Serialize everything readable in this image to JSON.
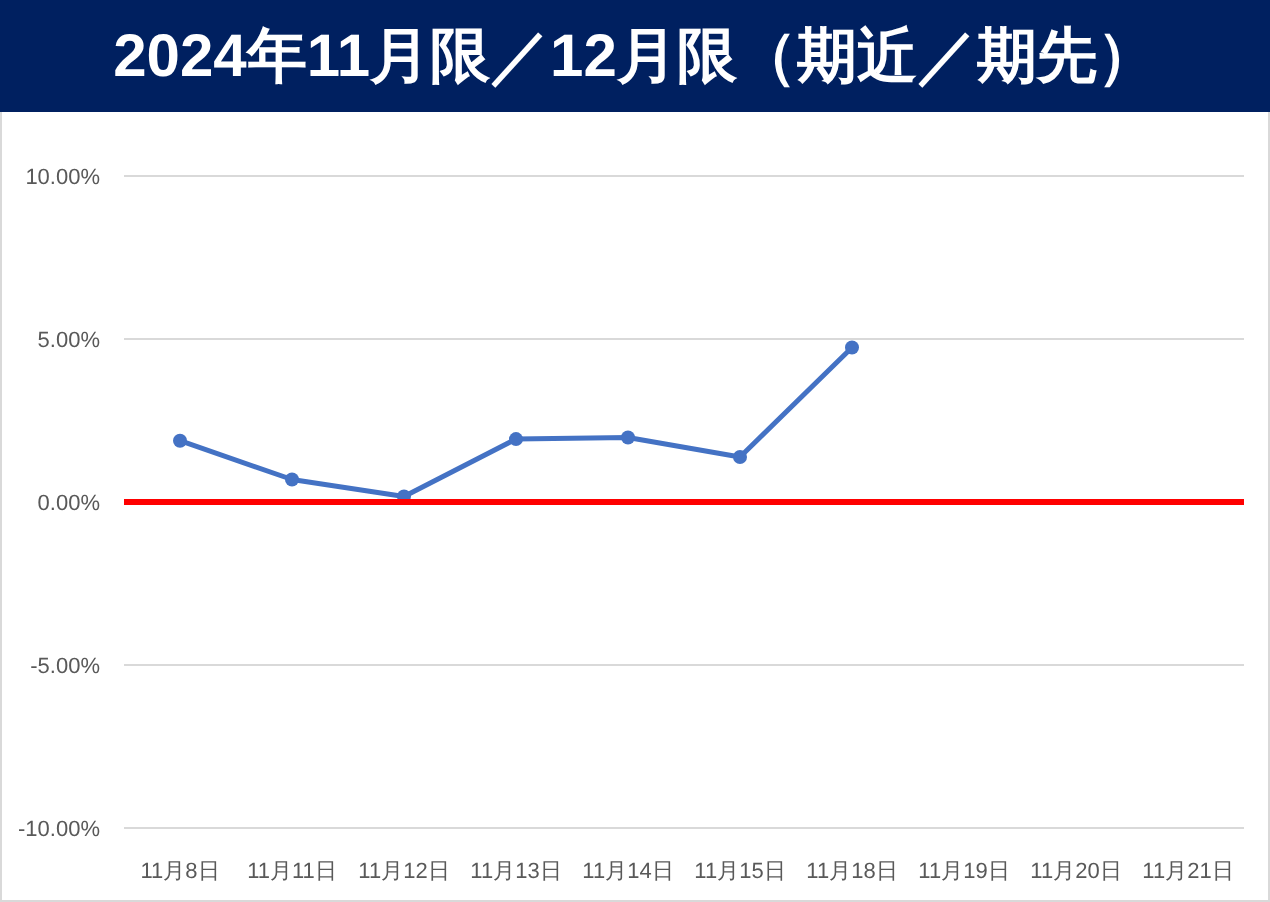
{
  "chart_data": {
    "type": "line",
    "title": "2024年11月限／12月限（期近／期先）",
    "categories": [
      "11月8日",
      "11月11日",
      "11月12日",
      "11月13日",
      "11月14日",
      "11月15日",
      "11月18日",
      "11月19日",
      "11月20日",
      "11月21日"
    ],
    "series": [
      {
        "color": "#4472c4",
        "values": [
          1.88,
          0.69,
          0.17,
          1.93,
          1.98,
          1.38,
          4.74,
          null,
          null,
          null
        ]
      }
    ],
    "ylim": [
      -10,
      10
    ],
    "yticks": [
      {
        "value": -10,
        "label": "-10.00%"
      },
      {
        "value": -5,
        "label": "-5.00%"
      },
      {
        "value": 0,
        "label": "0.00%"
      },
      {
        "value": 5,
        "label": "5.00%"
      },
      {
        "value": 10,
        "label": "10.00%"
      }
    ],
    "ref_lines": [
      {
        "axis": "y",
        "value": 0,
        "color": "#ff0000"
      }
    ],
    "grid": "y",
    "marker": "circle",
    "line_style": "solid"
  }
}
